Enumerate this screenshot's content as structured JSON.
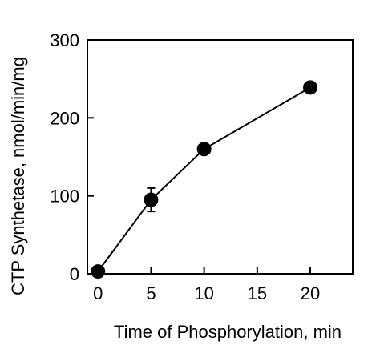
{
  "chart_data": {
    "type": "scatter",
    "title": "",
    "xlabel": "Time of Phosphorylation, min",
    "ylabel": "CTP Synthetase, nmol/min/mg",
    "xlim": [
      -1,
      24
    ],
    "ylim": [
      0,
      300
    ],
    "xticks": [
      0,
      5,
      10,
      15,
      20
    ],
    "yticks": [
      0,
      100,
      200,
      300
    ],
    "xtick_labels": [
      "0",
      "5",
      "10",
      "15",
      "20"
    ],
    "ytick_labels": [
      "0",
      "100",
      "200",
      "300"
    ],
    "grid": false,
    "legend": "none",
    "series": [
      {
        "x": [
          0,
          5,
          10,
          20
        ],
        "y": [
          3,
          95,
          160,
          239
        ],
        "y_err": [
          0,
          15,
          0,
          0
        ],
        "marker": "filled-circle",
        "connected": true,
        "color": "#000000"
      }
    ]
  }
}
